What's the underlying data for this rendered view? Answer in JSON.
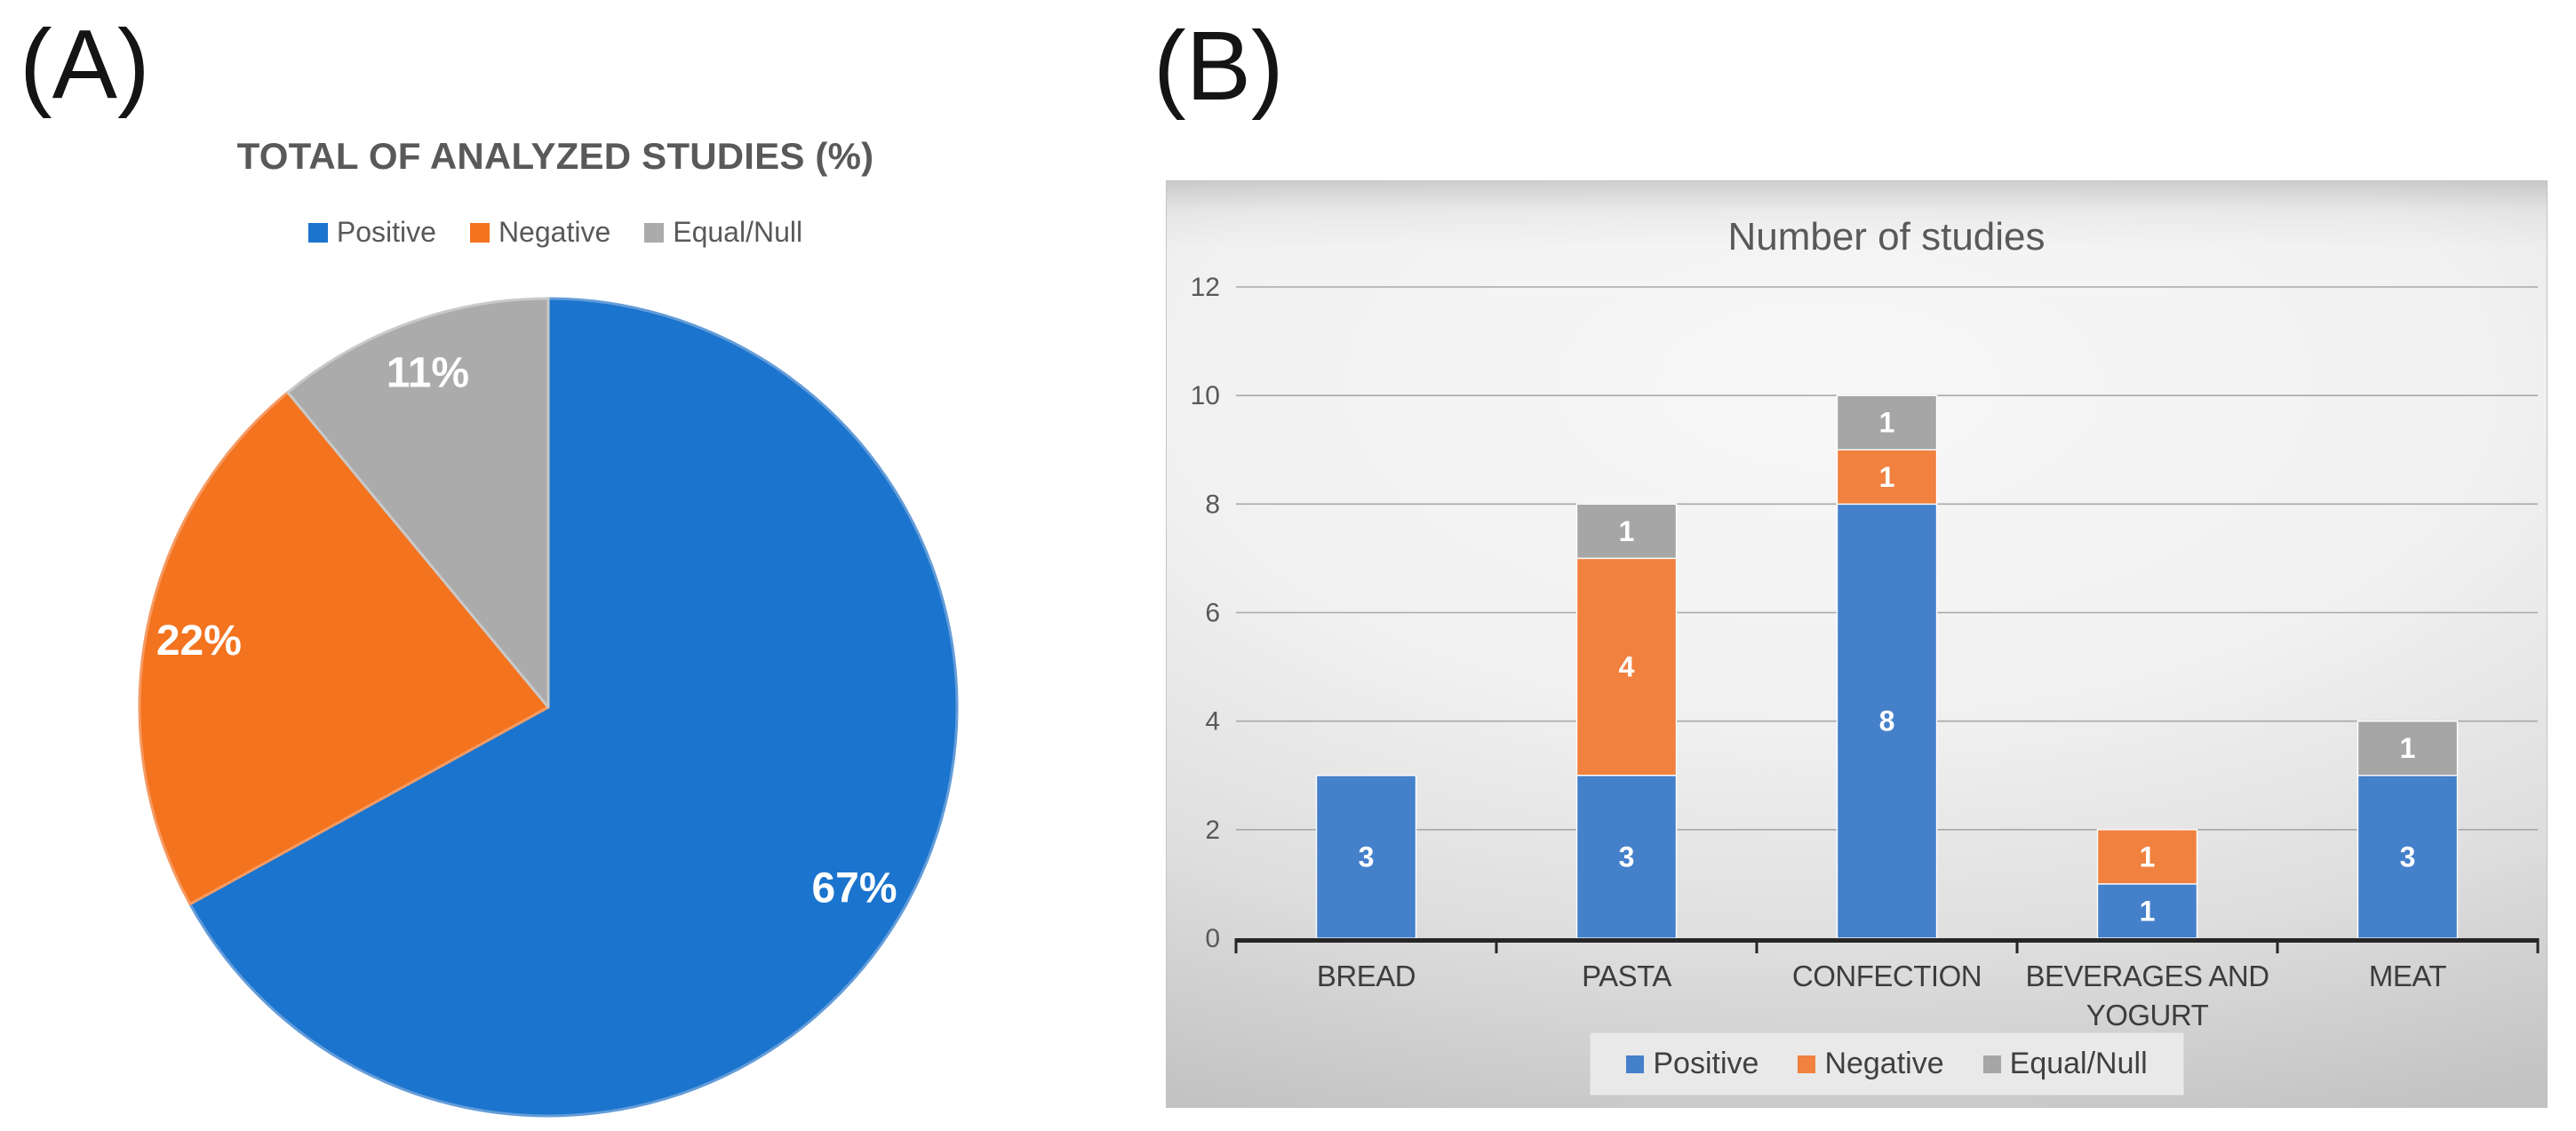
{
  "figure": {
    "panel_a_label": "(A)",
    "panel_b_label": "(B)",
    "background": "#FFFFFF"
  },
  "colors": {
    "positive": "#1B74CD",
    "negative": "#F3731F",
    "neutral": "#ABABAB",
    "positive_edge": "#639CD9",
    "negative_edge": "#F59A62",
    "neutral_edge": "#C9C9C9",
    "positive_bar": "#4580CB",
    "negative_bar": "#F0813F",
    "neutral_bar": "#A6A6A6",
    "title_text": "#595959",
    "tick_text": "#595959",
    "category_text": "#3D3D3D",
    "value_label_text": "#FFFFFF",
    "gridline": "#A9A9A9",
    "axis_line": "#262626",
    "legend_box_bg": "#E9E9E9",
    "legend_box_border": "#DADADA",
    "legend_text": "#404040"
  },
  "chart_data": [
    {
      "type": "pie",
      "title": "TOTAL OF ANALYZED STUDIES (%)",
      "legend_position": "top",
      "start_angle": "12-oclock",
      "direction": "clockwise",
      "slices": [
        {
          "label": "Positive",
          "value": 67,
          "display": "67%",
          "color_key": "positive"
        },
        {
          "label": "Negative",
          "value": 22,
          "display": "22%",
          "color_key": "negative"
        },
        {
          "label": "Equal/Null",
          "value": 11,
          "display": "11%",
          "color_key": "neutral"
        }
      ]
    },
    {
      "type": "bar",
      "stacked": true,
      "title": "Number of studies",
      "categories": [
        "BREAD",
        "PASTA",
        "CONFECTION",
        "BEVERAGES  AND\nYOGURT",
        "MEAT"
      ],
      "series": [
        {
          "name": "Positive",
          "color_key": "positive_bar",
          "values": [
            3,
            3,
            8,
            1,
            3
          ]
        },
        {
          "name": "Negative",
          "color_key": "negative_bar",
          "values": [
            0,
            4,
            1,
            1,
            0
          ]
        },
        {
          "name": "Equal/Null",
          "color_key": "neutral_bar",
          "values": [
            0,
            1,
            1,
            0,
            1
          ]
        }
      ],
      "ylim": [
        0,
        12
      ],
      "yticks": [
        0,
        2,
        4,
        6,
        8,
        10,
        12
      ],
      "grid": true,
      "legend_position": "bottom"
    }
  ]
}
